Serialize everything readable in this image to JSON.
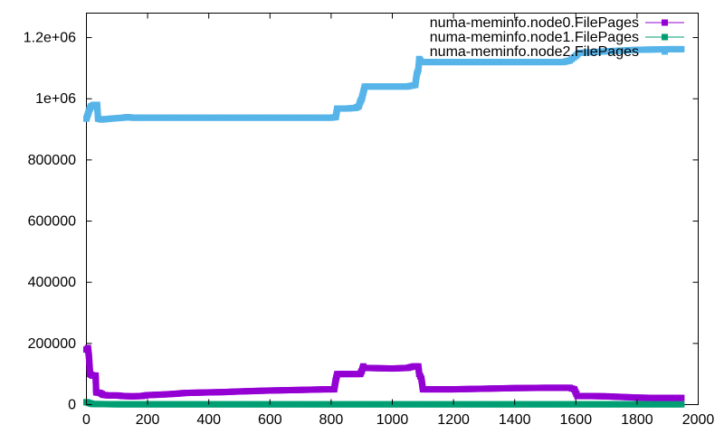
{
  "chart_data": {
    "type": "line",
    "title": "",
    "xlabel": "",
    "ylabel": "",
    "xlim": [
      0,
      2000
    ],
    "ylim": [
      0,
      1280000
    ],
    "xticks": [
      0,
      200,
      400,
      600,
      800,
      1000,
      1200,
      1400,
      1600,
      1800,
      2000
    ],
    "xtick_labels": [
      "0",
      "200",
      "400",
      "600",
      "800",
      "1000",
      "1200",
      "1400",
      "1600",
      "1800",
      "2000"
    ],
    "yticks": [
      0,
      200000,
      400000,
      600000,
      800000,
      1000000,
      1200000
    ],
    "ytick_labels": [
      "0",
      "200000",
      "400000",
      "600000",
      "800000",
      "1e+06",
      "1.2e+06"
    ],
    "grid": false,
    "legend_position": "top-right",
    "series": [
      {
        "name": "numa-meminfo.node0.FilePages",
        "color": "#9400d3",
        "marker": "square",
        "points": [
          [
            0,
            180000
          ],
          [
            5,
            185000
          ],
          [
            8,
            160000
          ],
          [
            12,
            100000
          ],
          [
            20,
            95000
          ],
          [
            30,
            95000
          ],
          [
            32,
            40000
          ],
          [
            45,
            38000
          ],
          [
            55,
            32000
          ],
          [
            70,
            30000
          ],
          [
            100,
            30000
          ],
          [
            120,
            28000
          ],
          [
            150,
            27000
          ],
          [
            180,
            28000
          ],
          [
            200,
            31000
          ],
          [
            250,
            33000
          ],
          [
            300,
            36000
          ],
          [
            320,
            38000
          ],
          [
            400,
            40000
          ],
          [
            450,
            41000
          ],
          [
            500,
            43000
          ],
          [
            600,
            46000
          ],
          [
            700,
            48000
          ],
          [
            780,
            50000
          ],
          [
            810,
            50000
          ],
          [
            815,
            80000
          ],
          [
            820,
            100000
          ],
          [
            840,
            100000
          ],
          [
            870,
            100000
          ],
          [
            895,
            100000
          ],
          [
            900,
            110000
          ],
          [
            905,
            125000
          ],
          [
            910,
            120000
          ],
          [
            1000,
            118000
          ],
          [
            1050,
            120000
          ],
          [
            1070,
            125000
          ],
          [
            1085,
            125000
          ],
          [
            1088,
            100000
          ],
          [
            1095,
            85000
          ],
          [
            1100,
            50000
          ],
          [
            1200,
            50000
          ],
          [
            1300,
            52000
          ],
          [
            1400,
            54000
          ],
          [
            1500,
            55000
          ],
          [
            1580,
            55000
          ],
          [
            1595,
            50000
          ],
          [
            1605,
            28000
          ],
          [
            1650,
            28000
          ],
          [
            1700,
            27000
          ],
          [
            1750,
            25000
          ],
          [
            1800,
            23000
          ],
          [
            1850,
            22000
          ],
          [
            1900,
            22000
          ],
          [
            1945,
            22000
          ]
        ]
      },
      {
        "name": "numa-meminfo.node1.FilePages",
        "color": "#009e73",
        "marker": "square",
        "points": [
          [
            0,
            8000
          ],
          [
            10,
            5000
          ],
          [
            20,
            2000
          ],
          [
            100,
            1000
          ],
          [
            500,
            1000
          ],
          [
            1000,
            1000
          ],
          [
            1500,
            1000
          ],
          [
            1945,
            1000
          ]
        ]
      },
      {
        "name": "numa-meminfo.node2.FilePages",
        "color": "#56b4e9",
        "marker": "square",
        "points": [
          [
            0,
            935000
          ],
          [
            5,
            950000
          ],
          [
            10,
            965000
          ],
          [
            15,
            975000
          ],
          [
            25,
            980000
          ],
          [
            35,
            980000
          ],
          [
            38,
            935000
          ],
          [
            50,
            932000
          ],
          [
            80,
            935000
          ],
          [
            120,
            938000
          ],
          [
            135,
            940000
          ],
          [
            150,
            938000
          ],
          [
            200,
            938000
          ],
          [
            400,
            938000
          ],
          [
            600,
            938000
          ],
          [
            800,
            938000
          ],
          [
            815,
            940000
          ],
          [
            820,
            968000
          ],
          [
            850,
            968000
          ],
          [
            880,
            970000
          ],
          [
            890,
            975000
          ],
          [
            895,
            990000
          ],
          [
            900,
            1000000
          ],
          [
            905,
            1020000
          ],
          [
            910,
            1040000
          ],
          [
            950,
            1040000
          ],
          [
            1000,
            1040000
          ],
          [
            1050,
            1040000
          ],
          [
            1075,
            1045000
          ],
          [
            1080,
            1080000
          ],
          [
            1085,
            1095000
          ],
          [
            1088,
            1130000
          ],
          [
            1095,
            1120000
          ],
          [
            1200,
            1120000
          ],
          [
            1300,
            1120000
          ],
          [
            1400,
            1120000
          ],
          [
            1560,
            1120000
          ],
          [
            1580,
            1125000
          ],
          [
            1600,
            1140000
          ],
          [
            1610,
            1150000
          ],
          [
            1650,
            1152000
          ],
          [
            1700,
            1155000
          ],
          [
            1800,
            1160000
          ],
          [
            1900,
            1162000
          ],
          [
            1945,
            1162000
          ]
        ]
      }
    ]
  }
}
